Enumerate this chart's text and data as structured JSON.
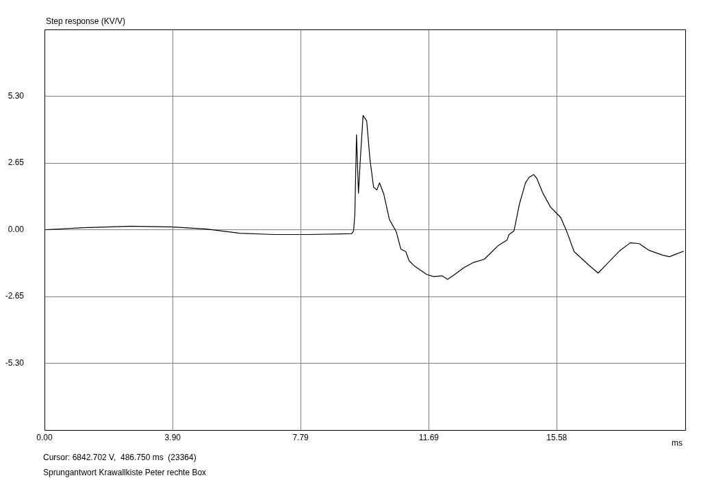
{
  "chart_data": {
    "type": "line",
    "title": "Step response (KV/V)",
    "xlabel": "ms",
    "annotations": [
      "Cursor: 6842.702 V,  486.750 ms  (23364)",
      "Sprungantwort Krawallkiste Peter rechte Box"
    ],
    "xlim": [
      0,
      19.49
    ],
    "ylim": [
      -7.95,
      7.95
    ],
    "xticks": [
      {
        "value": 0,
        "label": "0.00"
      },
      {
        "value": 3.9,
        "label": "3.90"
      },
      {
        "value": 7.79,
        "label": "7.79"
      },
      {
        "value": 11.69,
        "label": "11.69"
      },
      {
        "value": 15.58,
        "label": "15.58"
      }
    ],
    "yticks": [
      {
        "value": -5.3,
        "label": "-5.30"
      },
      {
        "value": -2.65,
        "label": "-2.65"
      },
      {
        "value": 0,
        "label": "0.00"
      },
      {
        "value": 2.65,
        "label": "2.65"
      },
      {
        "value": 5.3,
        "label": "5.30"
      }
    ],
    "grid": true,
    "legend": false,
    "marker": "none",
    "line_style": "solid",
    "series": [
      {
        "color": "#000000",
        "x": [
          0,
          1.15,
          2.61,
          3.86,
          4.9,
          5.94,
          6.98,
          8.03,
          9.34,
          9.4,
          9.44,
          9.49,
          9.55,
          9.61,
          9.69,
          9.8,
          9.9,
          10.01,
          10.11,
          10.19,
          10.32,
          10.49,
          10.7,
          10.84,
          10.99,
          11.09,
          11.26,
          11.63,
          11.84,
          12.09,
          12.26,
          12.45,
          12.76,
          13.03,
          13.38,
          13.8,
          14.07,
          14.13,
          14.28,
          14.45,
          14.63,
          14.74,
          14.88,
          14.97,
          15.16,
          15.39,
          15.7,
          15.88,
          16.11,
          16.57,
          16.84,
          17.26,
          17.51,
          17.82,
          18.09,
          18.39,
          18.8,
          19.01,
          19.22,
          19.45
        ],
        "values": [
          0,
          0.08,
          0.14,
          0.11,
          0.03,
          -0.14,
          -0.19,
          -0.19,
          -0.16,
          -0.05,
          0.6,
          3.77,
          1.45,
          2.87,
          4.54,
          4.32,
          2.79,
          1.69,
          1.58,
          1.86,
          1.42,
          0.41,
          -0.08,
          -0.77,
          -0.87,
          -1.23,
          -1.45,
          -1.78,
          -1.86,
          -1.83,
          -1.97,
          -1.8,
          -1.5,
          -1.31,
          -1.17,
          -0.63,
          -0.41,
          -0.19,
          -0.05,
          1.04,
          1.86,
          2.08,
          2.19,
          2.05,
          1.45,
          0.9,
          0.49,
          -0.05,
          -0.87,
          -1.42,
          -1.72,
          -1.15,
          -0.82,
          -0.52,
          -0.55,
          -0.82,
          -1.01,
          -1.07,
          -0.96,
          -0.85
        ]
      }
    ]
  }
}
